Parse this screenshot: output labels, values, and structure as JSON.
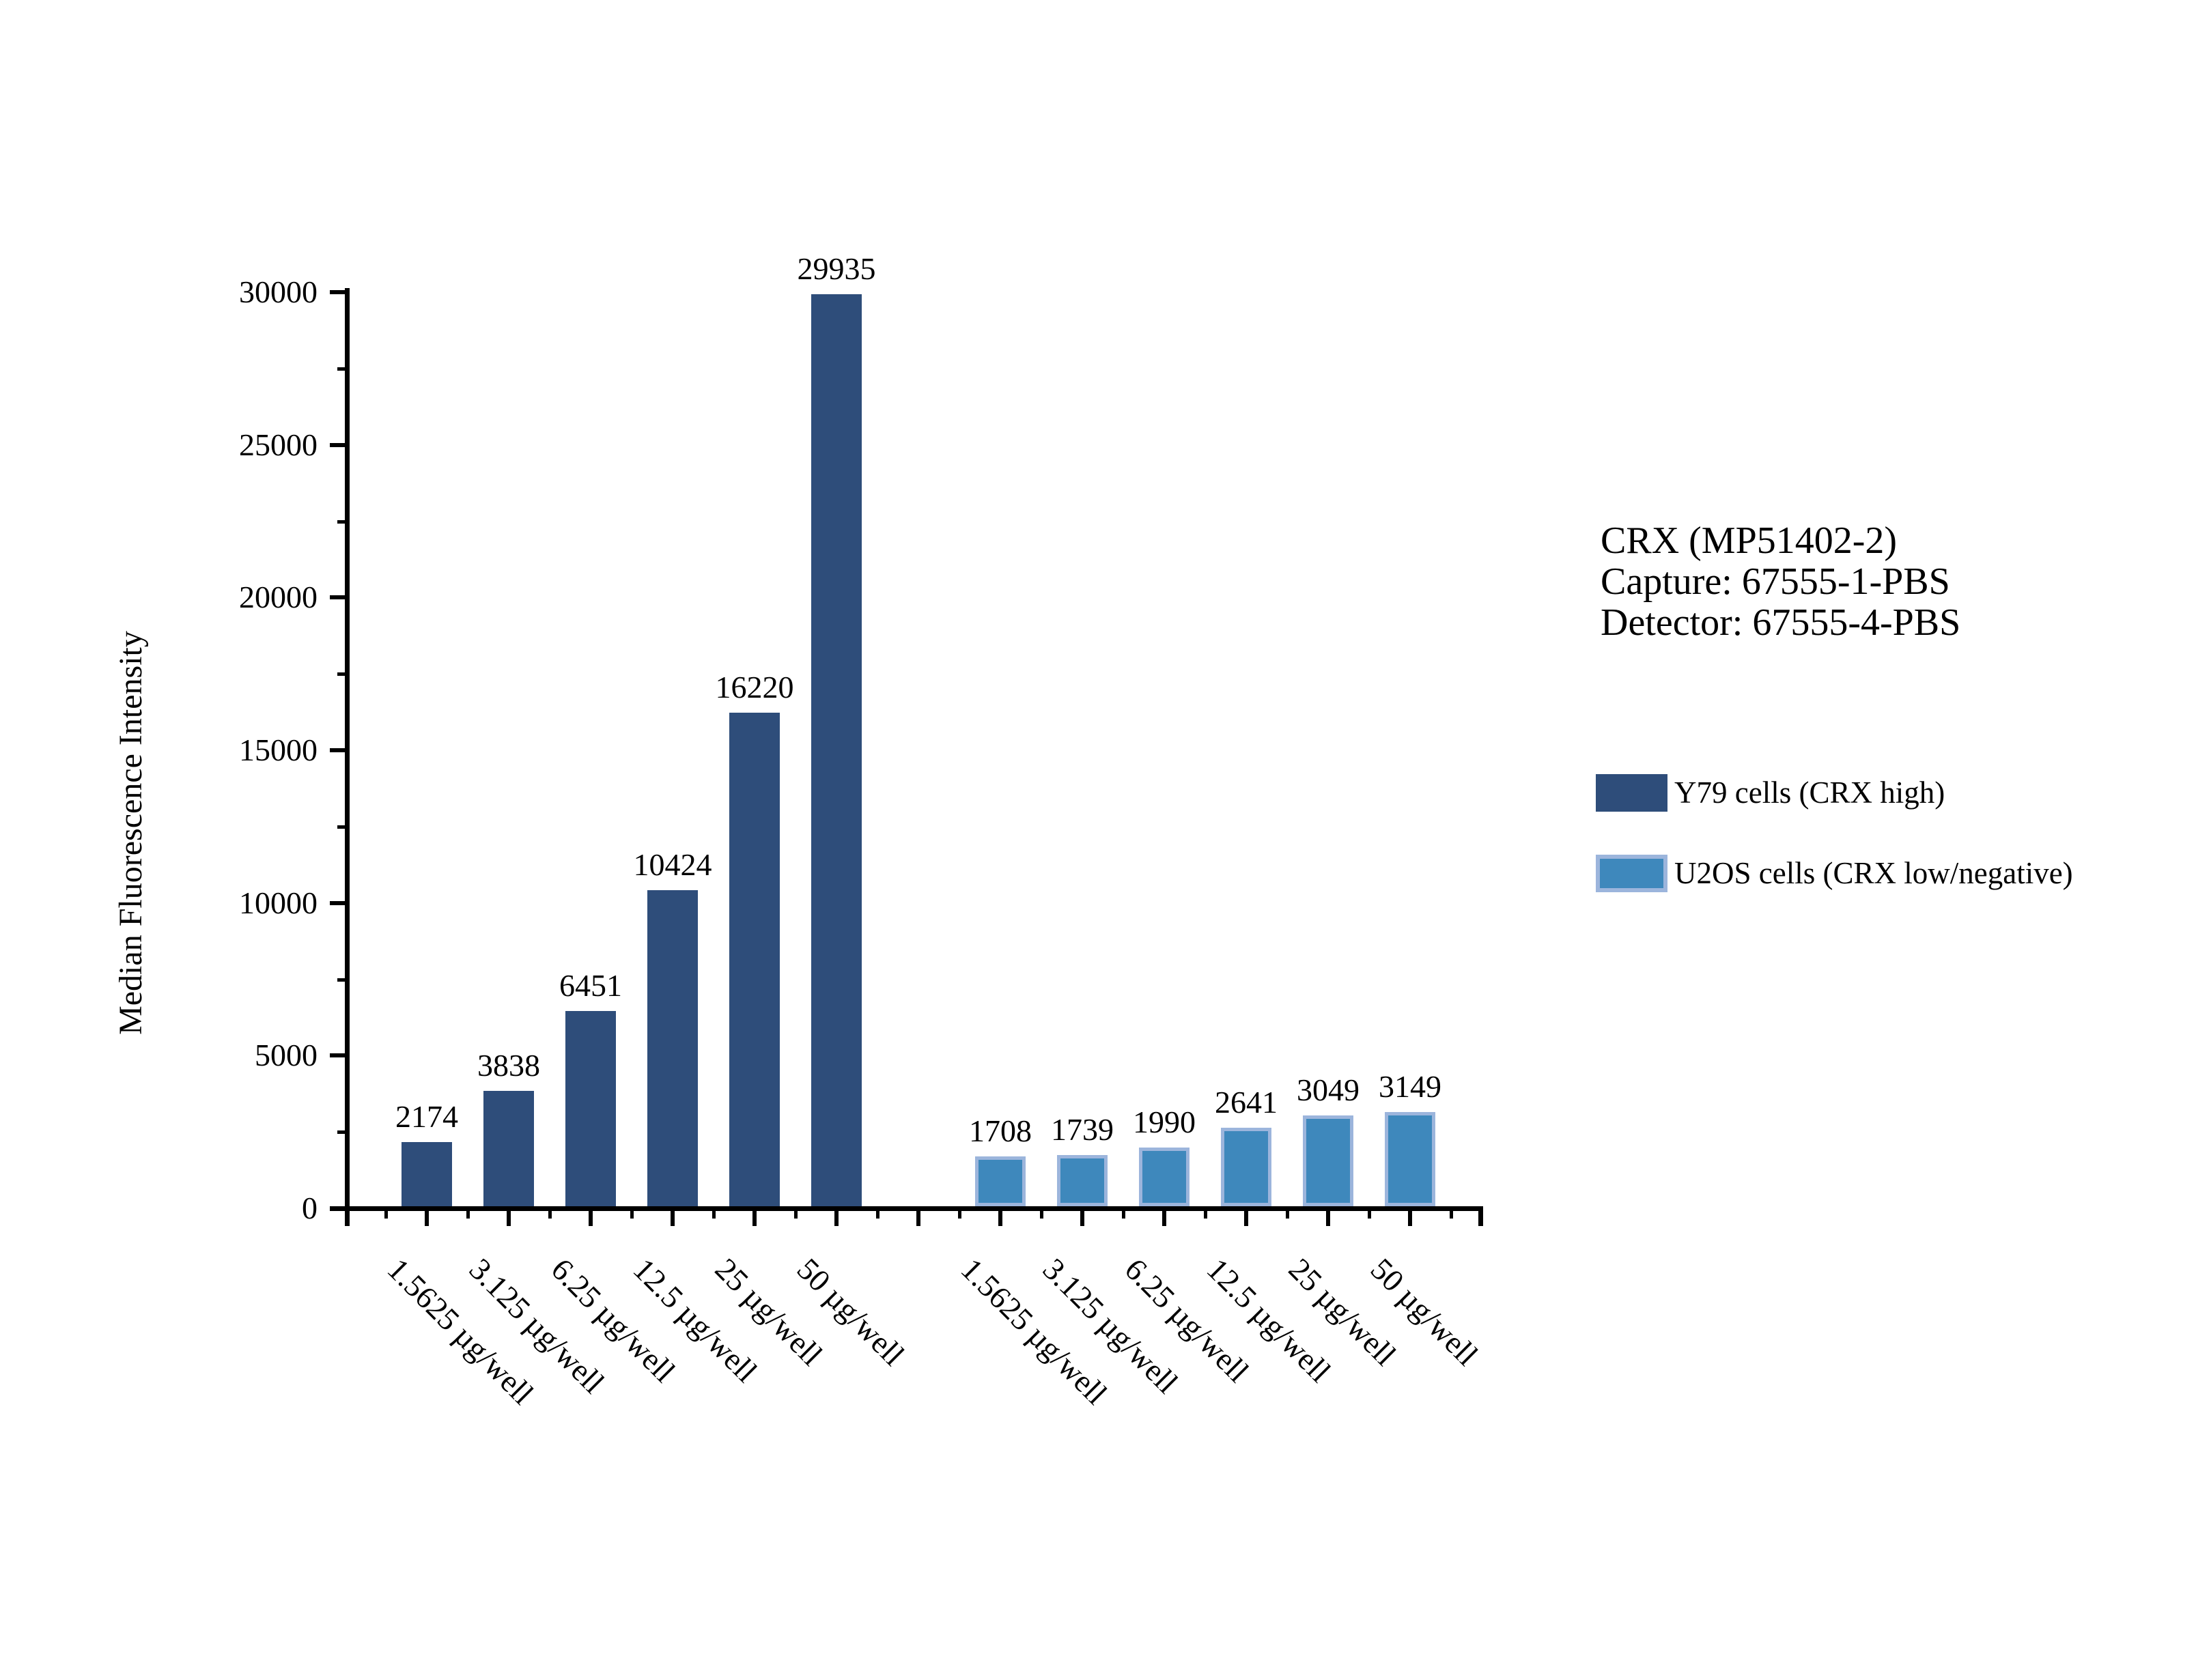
{
  "figure": {
    "background": "#ffffff",
    "y_axis_title": "Median Fluorescence Intensity",
    "annotation": {
      "lines": [
        "CRX (MP51402-2)",
        "Capture: 67555-1-PBS",
        "Detector: 67555-4-PBS"
      ]
    },
    "legend": {
      "items": [
        {
          "label": "Y79 cells (CRX high)",
          "color": "#2E4D7A",
          "border": "#2E4D7A"
        },
        {
          "label": "U2OS cells (CRX low/negative)",
          "color": "#3E88BC",
          "border": "#9CB5DC"
        }
      ]
    }
  },
  "chart_data": {
    "type": "bar",
    "title": "",
    "xlabel": "",
    "ylabel": "Median Fluorescence Intensity",
    "ylim": [
      0,
      30000
    ],
    "y_major_ticks": [
      0,
      5000,
      10000,
      15000,
      20000,
      25000,
      30000
    ],
    "y_minor_ticks": [
      2500,
      7500,
      12500,
      17500,
      22500,
      27500
    ],
    "grid": false,
    "legend_position": "right",
    "bar_value_labels": true,
    "categories": [
      "1.5625 µg/well",
      "3.125 µg/well",
      "6.25 µg/well",
      "12.5 µg/well",
      "25 µg/well",
      "50 µg/well"
    ],
    "series": [
      {
        "name": "Y79 cells (CRX high)",
        "color": "#2E4D7A",
        "border_color": "#2E4D7A",
        "values": [
          2174,
          3838,
          6451,
          10424,
          16220,
          29935
        ]
      },
      {
        "name": "U2OS cells (CRX low/negative)",
        "color": "#3E88BC",
        "border_color": "#9CB5DC",
        "values": [
          1708,
          1739,
          1990,
          2641,
          3049,
          3149
        ]
      }
    ]
  }
}
